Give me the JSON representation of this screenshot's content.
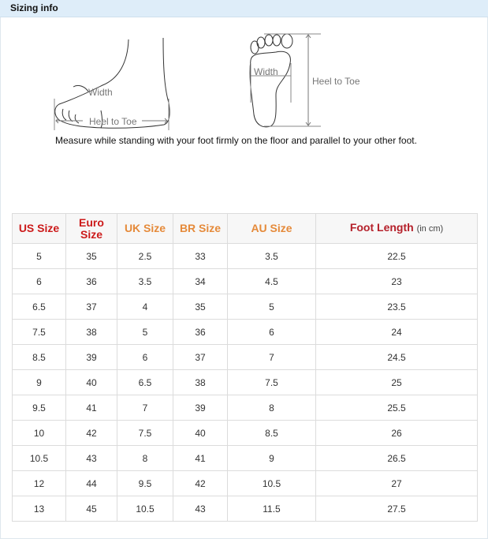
{
  "header": {
    "title": "Sizing info"
  },
  "diagram": {
    "side_width": "Width",
    "side_length": "Heel to Toe",
    "sole_width": "Width",
    "sole_length": "Heel to Toe"
  },
  "instruction": "Measure while standing with your foot firmly on the floor and parallel to your other foot.",
  "table": {
    "headers": [
      {
        "label": "US Size",
        "color": "#cc1a1a"
      },
      {
        "label": "Euro Size",
        "color": "#cc1a1a"
      },
      {
        "label": "UK Size",
        "color": "#e58a3a"
      },
      {
        "label": "BR Size",
        "color": "#e58a3a"
      },
      {
        "label": "AU Size",
        "color": "#e58a3a"
      },
      {
        "label": "Foot Length",
        "unit": "(in cm)",
        "color": "#b5202a"
      }
    ],
    "rows": [
      [
        "5",
        "35",
        "2.5",
        "33",
        "3.5",
        "22.5"
      ],
      [
        "6",
        "36",
        "3.5",
        "34",
        "4.5",
        "23"
      ],
      [
        "6.5",
        "37",
        "4",
        "35",
        "5",
        "23.5"
      ],
      [
        "7.5",
        "38",
        "5",
        "36",
        "6",
        "24"
      ],
      [
        "8.5",
        "39",
        "6",
        "37",
        "7",
        "24.5"
      ],
      [
        "9",
        "40",
        "6.5",
        "38",
        "7.5",
        "25"
      ],
      [
        "9.5",
        "41",
        "7",
        "39",
        "8",
        "25.5"
      ],
      [
        "10",
        "42",
        "7.5",
        "40",
        "8.5",
        "26"
      ],
      [
        "10.5",
        "43",
        "8",
        "41",
        "9",
        "26.5"
      ],
      [
        "12",
        "44",
        "9.5",
        "42",
        "10.5",
        "27"
      ],
      [
        "13",
        "45",
        "10.5",
        "43",
        "11.5",
        "27.5"
      ]
    ]
  }
}
